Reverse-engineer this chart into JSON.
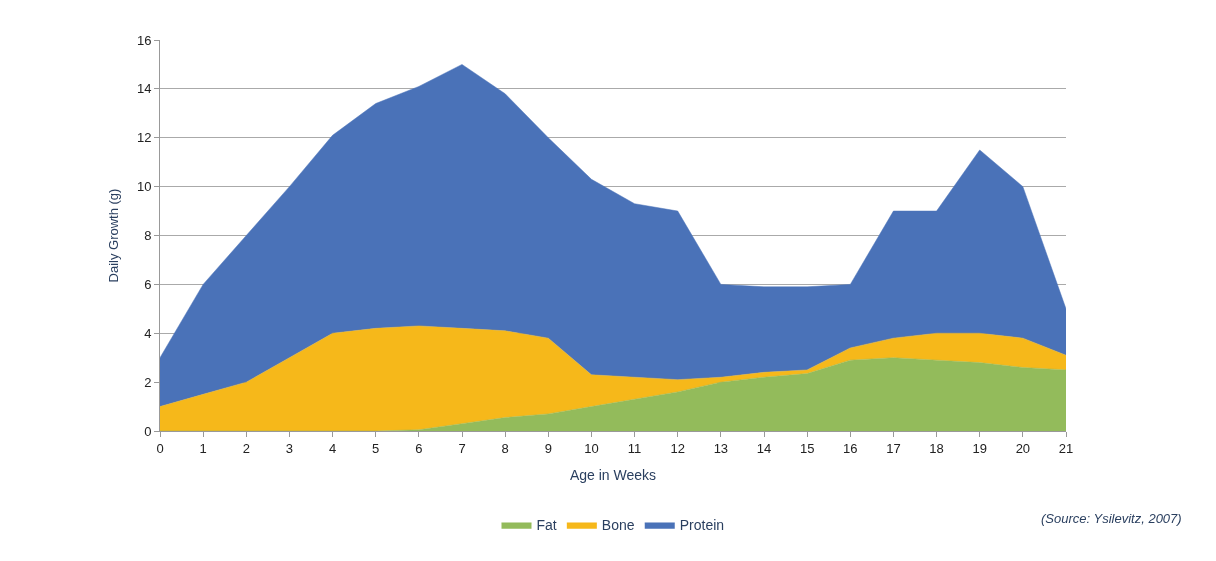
{
  "chart_data": {
    "type": "area",
    "stacked": true,
    "xlabel": "Age in Weeks",
    "ylabel": "Daily Growth (g)",
    "x": [
      0,
      1,
      2,
      3,
      4,
      5,
      6,
      7,
      8,
      9,
      10,
      11,
      12,
      13,
      14,
      15,
      16,
      17,
      18,
      19,
      20,
      21
    ],
    "xlim": [
      0,
      21
    ],
    "xticks": [
      0,
      1,
      2,
      3,
      4,
      5,
      6,
      7,
      8,
      9,
      10,
      11,
      12,
      13,
      14,
      15,
      16,
      17,
      18,
      19,
      20,
      21
    ],
    "ylim": [
      0,
      16
    ],
    "yticks": [
      0,
      2,
      4,
      6,
      8,
      10,
      12,
      14,
      16
    ],
    "grid": "y",
    "legend": "bottom",
    "marker": "none",
    "series": [
      {
        "name": "Fat",
        "color": "#93bb5b",
        "values": [
          0,
          0,
          0,
          0,
          0,
          0,
          0.05,
          0.3,
          0.55,
          0.7,
          1,
          1.3,
          1.6,
          2,
          2.2,
          2.35,
          2.9,
          3,
          2.9,
          2.8,
          2.6,
          2.5
        ]
      },
      {
        "name": "Bone",
        "color": "#f6b81a",
        "values": [
          1,
          1.5,
          2,
          3,
          4,
          4.2,
          4.25,
          3.9,
          3.55,
          3.1,
          1.3,
          0.9,
          0.5,
          0.2,
          0.2,
          0.15,
          0.5,
          0.8,
          1.1,
          1.2,
          1.2,
          0.6
        ]
      },
      {
        "name": "Protein",
        "color": "#4a72b8",
        "values": [
          2,
          4.5,
          6,
          7,
          8.1,
          9.2,
          9.8,
          10.8,
          9.7,
          8.2,
          8,
          7.1,
          6.9,
          3.8,
          3.5,
          3.4,
          2.6,
          5.2,
          5,
          7.5,
          6.2,
          1.9
        ]
      }
    ],
    "annotations": [
      "(Source: Ysilevitz, 2007)"
    ]
  }
}
